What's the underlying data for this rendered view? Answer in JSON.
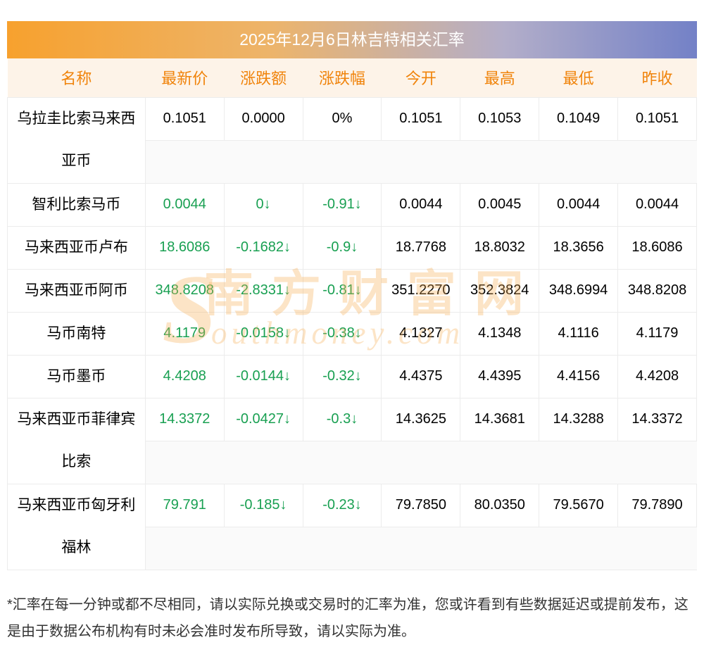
{
  "title": {
    "text": "2025年12月6日林吉特相关汇率"
  },
  "colors": {
    "header_text": "#f0830a",
    "header_bg": "#fdf3e8",
    "down_green": "#19a052",
    "title_gradient_left": "#f7a12e",
    "title_gradient_right": "#7381c7",
    "watermark": "rgba(247,173,81,0.33)"
  },
  "table": {
    "headers": [
      "名称",
      "最新价",
      "涨跌额",
      "涨跌幅",
      "今开",
      "最高",
      "最低",
      "昨收"
    ],
    "cell_names": [
      "latest-price",
      "change-amount",
      "change-percent",
      "today-open",
      "high",
      "low",
      "prev-close"
    ],
    "rows": [
      {
        "name": "乌拉圭比索马来西亚币",
        "tall": true,
        "trend": "flat",
        "values": [
          "0.1051",
          "0.0000",
          "0%",
          "0.1051",
          "0.1053",
          "0.1049",
          "0.1051"
        ]
      },
      {
        "name": "智利比索马币",
        "tall": false,
        "trend": "down",
        "values": [
          "0.0044",
          "0↓",
          "-0.91↓",
          "0.0044",
          "0.0045",
          "0.0044",
          "0.0044"
        ]
      },
      {
        "name": "马来西亚币卢布",
        "tall": false,
        "trend": "down",
        "values": [
          "18.6086",
          "-0.1682↓",
          "-0.9↓",
          "18.7768",
          "18.8032",
          "18.3656",
          "18.6086"
        ]
      },
      {
        "name": "马来西亚币阿币",
        "tall": false,
        "trend": "down",
        "values": [
          "348.8208",
          "-2.8331↓",
          "-0.81↓",
          "351.2270",
          "352.3824",
          "348.6994",
          "348.8208"
        ]
      },
      {
        "name": "马币南特",
        "tall": false,
        "trend": "down",
        "values": [
          "4.1179",
          "-0.0158↓",
          "-0.38↓",
          "4.1327",
          "4.1348",
          "4.1116",
          "4.1179"
        ]
      },
      {
        "name": "马币墨币",
        "tall": false,
        "trend": "down",
        "values": [
          "4.4208",
          "-0.0144↓",
          "-0.32↓",
          "4.4375",
          "4.4395",
          "4.4156",
          "4.4208"
        ]
      },
      {
        "name": "马来西亚币菲律宾比索",
        "tall": true,
        "trend": "down",
        "values": [
          "14.3372",
          "-0.0427↓",
          "-0.3↓",
          "14.3625",
          "14.3681",
          "14.3288",
          "14.3372"
        ]
      },
      {
        "name": "马来西亚币匈牙利福林",
        "tall": true,
        "trend": "down",
        "values": [
          "79.791",
          "-0.185↓",
          "-0.23↓",
          "79.7850",
          "80.0350",
          "79.5670",
          "79.7890"
        ]
      }
    ]
  },
  "watermark": {
    "s": "S",
    "cn": "南方财富网",
    "en": "outhmoney.com"
  },
  "footer": {
    "text": "*汇率在每一分钟或都不尽相同，请以实际兑换或交易时的汇率为准，您或许看到有些数据延迟或提前发布，这是由于数据公布机构有时未必会准时发布所导致，请以实际为准。"
  }
}
